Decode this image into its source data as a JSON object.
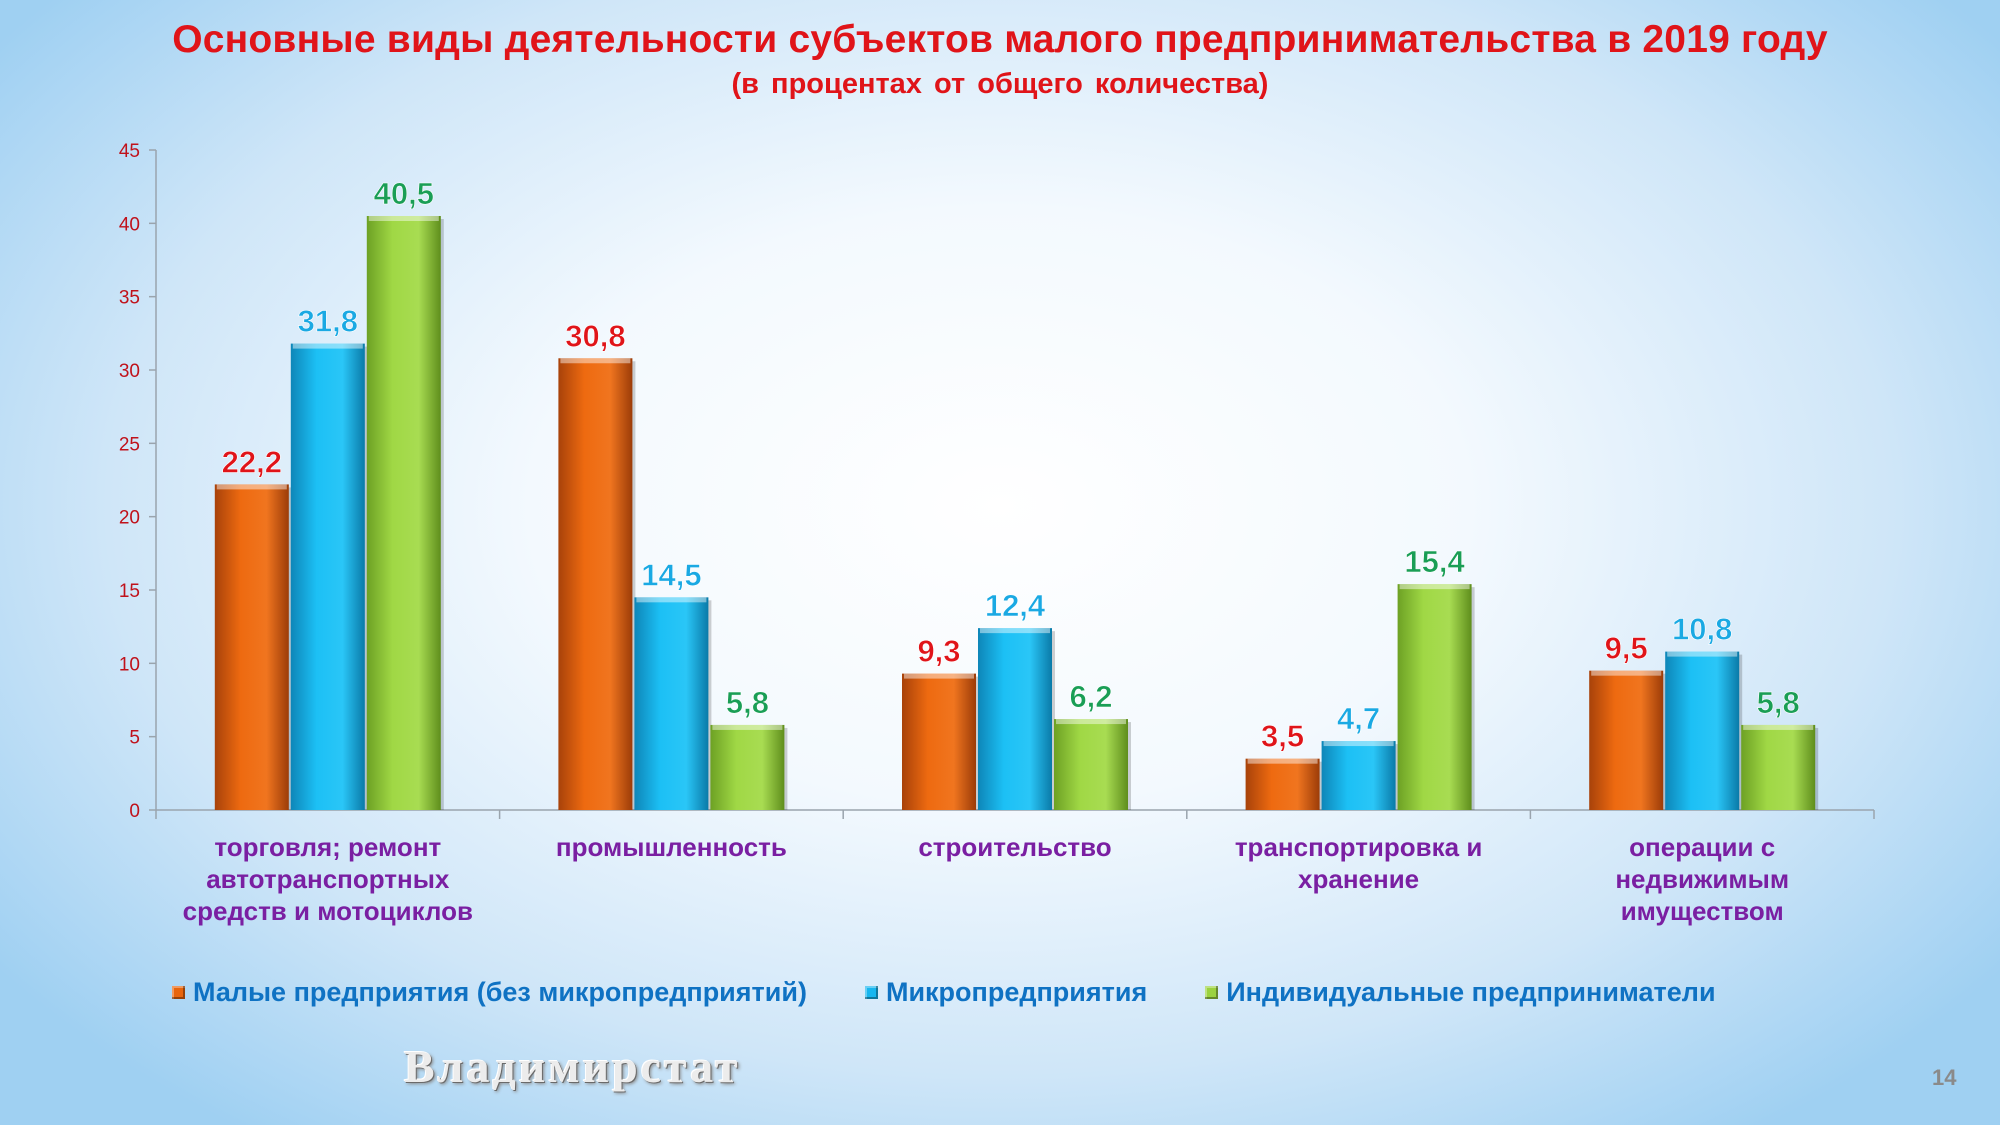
{
  "slide": {
    "title": "Основные виды деятельности субъектов малого предпринимательства в 2019 году",
    "subtitle": "(в процентах от общего количества)",
    "watermark": "Владимирстат",
    "page_number": "14"
  },
  "colors": {
    "series": [
      "#e8650c",
      "#17b6ef",
      "#9bd23f"
    ],
    "labels": [
      "#e01419",
      "#1aa9e3",
      "#1a9e55"
    ],
    "legend_text": "#0f72c3",
    "category_text": "#7a1fa2",
    "axis_text": "#c0121b",
    "axis_line": "#9aa4ad"
  },
  "chart_data": {
    "type": "bar",
    "title": "Основные виды деятельности субъектов малого предпринимательства в 2019 году",
    "subtitle": "(в процентах от общего количества)",
    "ylim": [
      0,
      45
    ],
    "yticks": [
      0,
      5,
      10,
      15,
      20,
      25,
      30,
      35,
      40,
      45
    ],
    "categories": [
      [
        "торговля; ремонт",
        "автотранспортных",
        "средств и мотоциклов"
      ],
      [
        "промышленность"
      ],
      [
        "строительство"
      ],
      [
        "транспортировка и",
        "хранение"
      ],
      [
        "операции с",
        "недвижимым",
        "имуществом"
      ]
    ],
    "series": [
      {
        "name": "Малые предприятия (без микропредприятий)",
        "values": [
          22.2,
          30.8,
          9.3,
          3.5,
          9.5
        ],
        "labels": [
          "22,2",
          "30,8",
          "9,3",
          "3,5",
          "9,5"
        ]
      },
      {
        "name": "Микропредприятия",
        "values": [
          31.8,
          14.5,
          12.4,
          4.7,
          10.8
        ],
        "labels": [
          "31,8",
          "14,5",
          "12,4",
          "4,7",
          "10,8"
        ]
      },
      {
        "name": "Индивидуальные предприниматели",
        "values": [
          40.5,
          5.8,
          6.2,
          15.4,
          5.8
        ],
        "labels": [
          "40,5",
          "5,8",
          "6,2",
          "15,4",
          "5,8"
        ]
      }
    ],
    "legend_position": "bottom",
    "grid": false
  }
}
